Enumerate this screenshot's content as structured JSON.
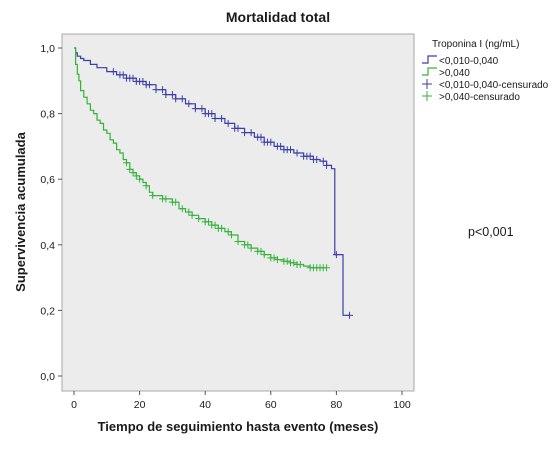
{
  "chart_data": {
    "type": "line",
    "subtype": "kaplan-meier",
    "title": "Mortalidad total",
    "xlabel": "Tiempo de seguimiento hasta evento (meses)",
    "ylabel": "Supervivencia acumulada",
    "xlim": [
      0,
      100
    ],
    "ylim": [
      0,
      1
    ],
    "x_ticks": [
      "0",
      "20",
      "40",
      "60",
      "80",
      "100"
    ],
    "y_ticks": [
      "0,0",
      "0,2",
      "0,4",
      "0,6",
      "0,8",
      "1,0"
    ],
    "grid": false,
    "legend_placement": "right",
    "legend_title": "Troponina I (ng/mL)",
    "annotation": "p<0,001",
    "colors": {
      "low": "#3b3ea8",
      "high": "#35b23b",
      "plot_bg": "#ececec"
    },
    "series": [
      {
        "name": "<0,010-0,040",
        "censored_label": "<0,010-0,040-censurado",
        "color": "#3b3ea8",
        "points": [
          [
            0,
            1.0
          ],
          [
            0.5,
            0.985
          ],
          [
            1,
            0.975
          ],
          [
            2,
            0.968
          ],
          [
            3,
            0.962
          ],
          [
            5,
            0.95
          ],
          [
            7,
            0.94
          ],
          [
            10,
            0.928
          ],
          [
            13,
            0.918
          ],
          [
            16,
            0.908
          ],
          [
            19,
            0.898
          ],
          [
            22,
            0.888
          ],
          [
            25,
            0.873
          ],
          [
            28,
            0.858
          ],
          [
            31,
            0.845
          ],
          [
            34,
            0.83
          ],
          [
            37,
            0.815
          ],
          [
            40,
            0.8
          ],
          [
            43,
            0.785
          ],
          [
            46,
            0.77
          ],
          [
            49,
            0.755
          ],
          [
            52,
            0.742
          ],
          [
            55,
            0.728
          ],
          [
            58,
            0.713
          ],
          [
            61,
            0.7
          ],
          [
            64,
            0.69
          ],
          [
            67,
            0.68
          ],
          [
            70,
            0.67
          ],
          [
            73,
            0.66
          ],
          [
            75,
            0.655
          ],
          [
            77,
            0.642
          ],
          [
            78.5,
            0.632
          ],
          [
            79.5,
            0.37
          ],
          [
            81,
            0.37
          ],
          [
            82,
            0.185
          ],
          [
            84,
            0.185
          ]
        ],
        "censored": [
          12,
          14,
          15,
          16,
          17,
          18,
          19,
          20,
          21,
          22,
          23,
          25,
          27,
          28,
          30,
          31,
          33,
          35,
          37,
          39,
          40,
          41,
          42,
          43,
          45,
          47,
          49,
          50,
          52,
          54,
          56,
          57,
          58,
          59,
          60,
          62,
          63,
          64,
          65,
          66,
          68,
          70,
          71,
          72,
          73,
          74,
          76,
          77,
          80,
          84
        ]
      },
      {
        "name": ">0,040",
        "censored_label": ">0,040-censurado",
        "color": "#35b23b",
        "points": [
          [
            0,
            1.0
          ],
          [
            0.5,
            0.95
          ],
          [
            1,
            0.92
          ],
          [
            1.5,
            0.9
          ],
          [
            2,
            0.87
          ],
          [
            3,
            0.85
          ],
          [
            4,
            0.83
          ],
          [
            5,
            0.81
          ],
          [
            6,
            0.8
          ],
          [
            7,
            0.78
          ],
          [
            8,
            0.77
          ],
          [
            9,
            0.75
          ],
          [
            10,
            0.74
          ],
          [
            11,
            0.72
          ],
          [
            12,
            0.71
          ],
          [
            13,
            0.69
          ],
          [
            14,
            0.68
          ],
          [
            15,
            0.66
          ],
          [
            16,
            0.65
          ],
          [
            17,
            0.63
          ],
          [
            18,
            0.62
          ],
          [
            19,
            0.61
          ],
          [
            20,
            0.6
          ],
          [
            21,
            0.59
          ],
          [
            22,
            0.58
          ],
          [
            23,
            0.56
          ],
          [
            24,
            0.55
          ],
          [
            27,
            0.54
          ],
          [
            30,
            0.53
          ],
          [
            32,
            0.51
          ],
          [
            34,
            0.5
          ],
          [
            36,
            0.49
          ],
          [
            38,
            0.48
          ],
          [
            40,
            0.47
          ],
          [
            42,
            0.46
          ],
          [
            44,
            0.45
          ],
          [
            46,
            0.44
          ],
          [
            48,
            0.43
          ],
          [
            50,
            0.41
          ],
          [
            52,
            0.4
          ],
          [
            54,
            0.39
          ],
          [
            56,
            0.38
          ],
          [
            58,
            0.37
          ],
          [
            60,
            0.36
          ],
          [
            62,
            0.355
          ],
          [
            64,
            0.35
          ],
          [
            66,
            0.345
          ],
          [
            68,
            0.34
          ],
          [
            70,
            0.335
          ],
          [
            72,
            0.33
          ],
          [
            74,
            0.33
          ],
          [
            76,
            0.33
          ]
        ],
        "censored": [
          16,
          17,
          18,
          19,
          20,
          22,
          24,
          27,
          28,
          30,
          31,
          33,
          35,
          36,
          38,
          40,
          41,
          42,
          43,
          44,
          45,
          47,
          48,
          50,
          52,
          53,
          54,
          56,
          57,
          58,
          60,
          61,
          62,
          64,
          65,
          66,
          67,
          68,
          69,
          72,
          73,
          74,
          75,
          76,
          77
        ]
      }
    ]
  }
}
